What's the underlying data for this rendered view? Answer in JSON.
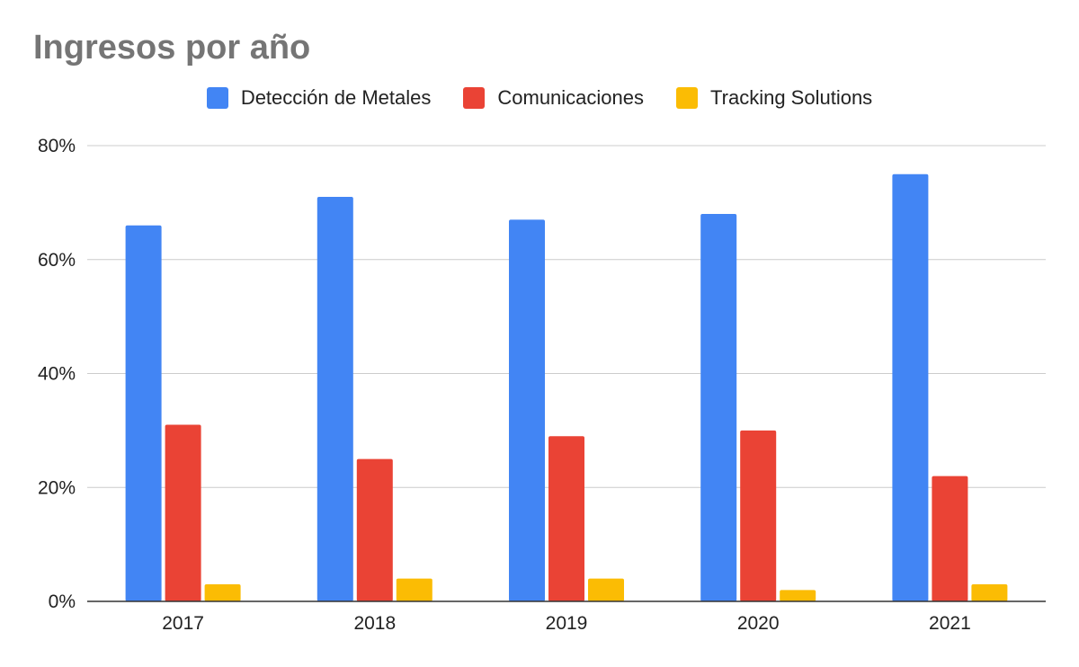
{
  "chart_data": {
    "type": "bar",
    "title": "Ingresos por año",
    "xlabel": "",
    "ylabel": "",
    "categories": [
      "2017",
      "2018",
      "2019",
      "2020",
      "2021"
    ],
    "series": [
      {
        "name": "Detección de Metales",
        "color": "#4285F4",
        "values": [
          66,
          71,
          67,
          68,
          75
        ]
      },
      {
        "name": "Comunicaciones",
        "color": "#EA4335",
        "values": [
          31,
          25,
          29,
          30,
          22
        ]
      },
      {
        "name": "Tracking Solutions",
        "color": "#FBBC04",
        "values": [
          3,
          4,
          4,
          2,
          3
        ]
      }
    ],
    "y_ticks": [
      0,
      20,
      40,
      60,
      80
    ],
    "y_tick_labels": [
      "0%",
      "20%",
      "40%",
      "60%",
      "80%"
    ],
    "ylim": [
      0,
      80
    ],
    "grid": true,
    "legend_position": "top"
  }
}
